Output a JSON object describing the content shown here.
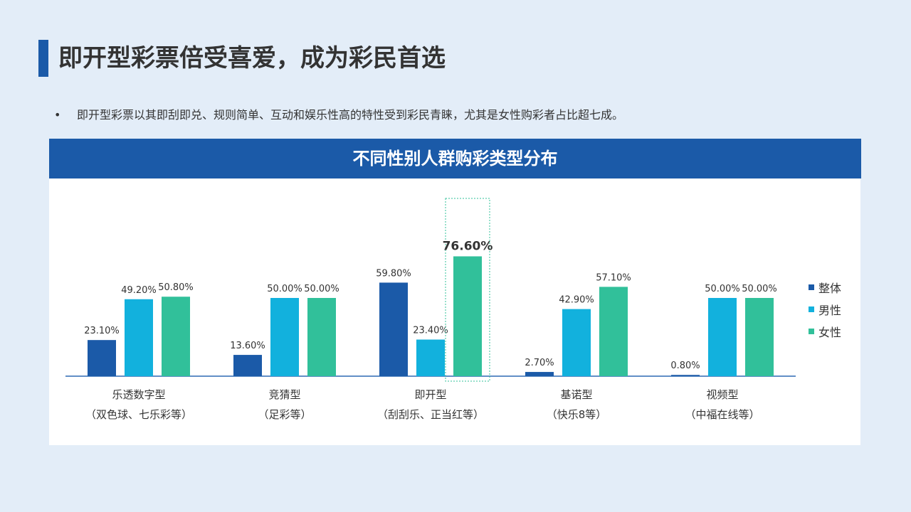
{
  "slide": {
    "title": "即开型彩票倍受喜爱，成为彩民首选",
    "bullet_symbol": "•",
    "bullet": "即开型彩票以其即刮即兑、规则简单、互动和娱乐性高的特性受到彩民青睐，尤其是女性购彩者占比超七成。"
  },
  "colors": {
    "accent": "#1b5aa8",
    "series": [
      "#1b5aa8",
      "#12b1dd",
      "#31c09a"
    ],
    "highlight_box": "#31c09a"
  },
  "chart_data": {
    "type": "bar",
    "title": "不同性别人群购彩类型分布",
    "categories": [
      [
        "乐透数字型",
        "（双色球、七乐彩等）"
      ],
      [
        "竞猜型",
        "（足彩等）"
      ],
      [
        "即开型",
        "（刮刮乐、正当红等）"
      ],
      [
        "基诺型",
        "（快乐8等）"
      ],
      [
        "视频型",
        "（中福在线等）"
      ]
    ],
    "series": [
      {
        "name": "整体",
        "values": [
          23.1,
          13.6,
          59.8,
          2.7,
          0.8
        ],
        "labels": [
          "23.10%",
          "13.60%",
          "59.80%",
          "2.70%",
          "0.80%"
        ]
      },
      {
        "name": "男性",
        "values": [
          49.2,
          50.0,
          23.4,
          42.9,
          50.0
        ],
        "labels": [
          "49.20%",
          "50.00%",
          "23.40%",
          "42.90%",
          "50.00%"
        ]
      },
      {
        "name": "女性",
        "values": [
          50.8,
          50.0,
          76.6,
          57.1,
          50.0
        ],
        "labels": [
          "50.80%",
          "50.00%",
          "76.60%",
          "57.10%",
          "50.00%"
        ]
      }
    ],
    "highlight": {
      "category": "即开型",
      "series": "女性"
    },
    "legend_position": "right",
    "ylim": [
      0,
      80
    ],
    "grid": false
  }
}
